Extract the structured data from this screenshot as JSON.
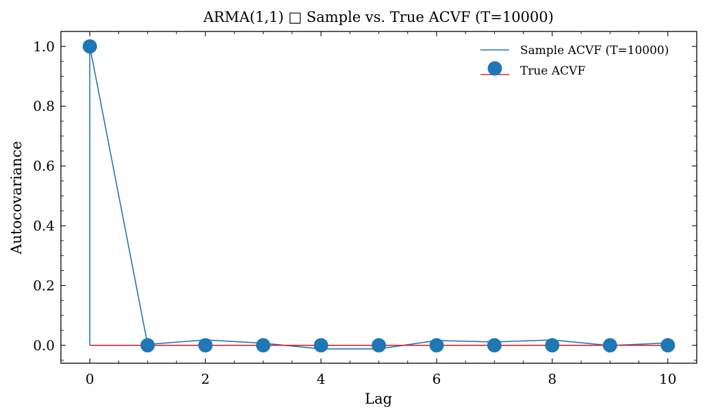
{
  "chart_data": {
    "type": "line",
    "title": "ARMA(1,1) □ Sample vs. True ACVF (T=10000)",
    "xlabel": "Lag",
    "ylabel": "Autocovariance",
    "xlim": [
      -0.5,
      10.5
    ],
    "ylim": [
      -0.06,
      1.05
    ],
    "x_ticks": [
      0,
      2,
      4,
      6,
      8,
      10
    ],
    "y_ticks": [
      0.0,
      0.2,
      0.4,
      0.6,
      0.8,
      1.0
    ],
    "x_tick_labels": [
      "0",
      "2",
      "4",
      "6",
      "8",
      "10"
    ],
    "y_tick_labels": [
      "0.0",
      "0.2",
      "0.4",
      "0.6",
      "0.8",
      "1.0"
    ],
    "grid": false,
    "legend_position": "top-right",
    "x": [
      0,
      1,
      2,
      3,
      4,
      5,
      6,
      7,
      8,
      9,
      10
    ],
    "series": [
      {
        "name": "Sample ACVF (T=10000)",
        "kind": "line",
        "color": "#1f77b4",
        "values": [
          1.0,
          0.003,
          0.018,
          0.007,
          -0.012,
          -0.012,
          0.016,
          0.011,
          0.018,
          -0.001,
          0.008
        ]
      },
      {
        "name": "True ACVF",
        "kind": "stem",
        "marker_color": "#1f77b4",
        "stem_color": "#1f77b4",
        "baseline_color": "#d62728",
        "values": [
          1.0,
          0.0,
          0.0,
          0.0,
          0.0,
          0.0,
          0.0,
          0.0,
          0.0,
          0.0,
          0.0
        ]
      }
    ]
  }
}
